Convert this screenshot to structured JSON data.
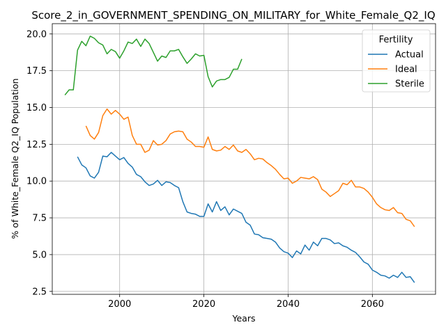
{
  "chart_data": {
    "type": "line",
    "title": "Score_2_in_GOVERNMENT_SPENDING_ON_MILITARY_for_White_Female_Q2_IQ",
    "xlabel": "Years",
    "ylabel": "% of White_Female Q2_IQ Population",
    "xlim": [
      1984,
      2075
    ],
    "ylim": [
      2.3,
      20.7
    ],
    "xticks": [
      "2000",
      "2020",
      "2040",
      "2060"
    ],
    "yticks": [
      "2.5",
      "5.0",
      "7.5",
      "10.0",
      "12.5",
      "15.0",
      "17.5",
      "20.0"
    ],
    "grid": true,
    "legend": {
      "title": "Fertility",
      "position": "top-right"
    },
    "series": [
      {
        "name": "Actual",
        "color": "#1f77b4",
        "x": [
          1990,
          1991,
          1992,
          1993,
          1994,
          1995,
          1996,
          1997,
          1998,
          1999,
          2000,
          2001,
          2002,
          2003,
          2004,
          2005,
          2006,
          2007,
          2008,
          2009,
          2010,
          2011,
          2012,
          2013,
          2014,
          2015,
          2016,
          2017,
          2018,
          2019,
          2020,
          2021,
          2022,
          2023,
          2024,
          2025,
          2026,
          2027,
          2028,
          2029,
          2030,
          2031,
          2032,
          2033,
          2034,
          2035,
          2036,
          2037,
          2038,
          2039,
          2040,
          2041,
          2042,
          2043,
          2044,
          2045,
          2046,
          2047,
          2048,
          2049,
          2050,
          2051,
          2052,
          2053,
          2054,
          2055,
          2056,
          2057,
          2058,
          2059,
          2060,
          2061,
          2062,
          2063,
          2064,
          2065,
          2066,
          2067,
          2068,
          2069,
          2070
        ],
        "y": [
          11.65,
          11.1,
          10.9,
          10.35,
          10.2,
          10.6,
          11.7,
          11.65,
          11.95,
          11.7,
          11.45,
          11.6,
          11.2,
          10.95,
          10.45,
          10.3,
          9.95,
          9.7,
          9.8,
          10.05,
          9.7,
          9.95,
          9.9,
          9.7,
          9.55,
          8.6,
          7.9,
          7.8,
          7.75,
          7.6,
          7.6,
          8.45,
          7.9,
          8.6,
          8.0,
          8.25,
          7.7,
          8.1,
          7.95,
          7.8,
          7.2,
          7.0,
          6.4,
          6.35,
          6.15,
          6.1,
          6.05,
          5.85,
          5.45,
          5.2,
          5.1,
          4.8,
          5.25,
          5.05,
          5.65,
          5.3,
          5.85,
          5.6,
          6.1,
          6.1,
          6.0,
          5.75,
          5.8,
          5.6,
          5.5,
          5.3,
          5.15,
          4.85,
          4.5,
          4.35,
          3.95,
          3.8,
          3.6,
          3.55,
          3.4,
          3.6,
          3.45,
          3.8,
          3.45,
          3.5,
          3.1
        ]
      },
      {
        "name": "Ideal",
        "color": "#ff7f0e",
        "x": [
          1992,
          1993,
          1994,
          1995,
          1996,
          1997,
          1998,
          1999,
          2000,
          2001,
          2002,
          2003,
          2004,
          2005,
          2006,
          2007,
          2008,
          2009,
          2010,
          2011,
          2012,
          2013,
          2014,
          2015,
          2016,
          2017,
          2018,
          2019,
          2020,
          2021,
          2022,
          2023,
          2024,
          2025,
          2026,
          2027,
          2028,
          2029,
          2030,
          2031,
          2032,
          2033,
          2034,
          2035,
          2036,
          2037,
          2038,
          2039,
          2040,
          2041,
          2042,
          2043,
          2044,
          2045,
          2046,
          2047,
          2048,
          2049,
          2050,
          2051,
          2052,
          2053,
          2054,
          2055,
          2056,
          2057,
          2058,
          2059,
          2060,
          2061,
          2062,
          2063,
          2064,
          2065,
          2066,
          2067,
          2068,
          2069,
          2070
        ],
        "y": [
          13.75,
          13.1,
          12.85,
          13.3,
          14.45,
          14.9,
          14.55,
          14.8,
          14.55,
          14.2,
          14.35,
          13.1,
          12.5,
          12.5,
          11.95,
          12.1,
          12.75,
          12.45,
          12.5,
          12.75,
          13.2,
          13.35,
          13.4,
          13.35,
          12.85,
          12.65,
          12.35,
          12.35,
          12.3,
          13.0,
          12.15,
          12.05,
          12.1,
          12.35,
          12.15,
          12.45,
          12.05,
          11.95,
          12.15,
          11.85,
          11.45,
          11.55,
          11.5,
          11.25,
          11.05,
          10.8,
          10.45,
          10.15,
          10.2,
          9.85,
          10.0,
          10.25,
          10.2,
          10.15,
          10.3,
          10.1,
          9.45,
          9.25,
          8.95,
          9.15,
          9.35,
          9.85,
          9.75,
          10.05,
          9.6,
          9.6,
          9.5,
          9.25,
          8.9,
          8.45,
          8.2,
          8.05,
          8.0,
          8.2,
          7.85,
          7.8,
          7.4,
          7.3,
          6.9
        ]
      },
      {
        "name": "Sterile",
        "color": "#2ca02c",
        "x": [
          1987,
          1988,
          1989,
          1990,
          1991,
          1992,
          1993,
          1994,
          1995,
          1996,
          1997,
          1998,
          1999,
          2000,
          2001,
          2002,
          2003,
          2004,
          2005,
          2006,
          2007,
          2008,
          2009,
          2010,
          2011,
          2012,
          2013,
          2014,
          2015,
          2016,
          2017,
          2018,
          2019,
          2020,
          2021,
          2022,
          2023,
          2024,
          2025,
          2026,
          2027,
          2028,
          2029
        ],
        "y": [
          15.85,
          16.2,
          16.2,
          18.9,
          19.5,
          19.2,
          19.85,
          19.7,
          19.4,
          19.25,
          18.65,
          18.95,
          18.8,
          18.35,
          18.85,
          19.45,
          19.35,
          19.65,
          19.15,
          19.65,
          19.35,
          18.75,
          18.15,
          18.5,
          18.4,
          18.85,
          18.85,
          18.95,
          18.45,
          18.0,
          18.3,
          18.65,
          18.5,
          18.55,
          17.1,
          16.4,
          16.8,
          16.9,
          16.9,
          17.05,
          17.6,
          17.6,
          18.3
        ]
      }
    ]
  }
}
